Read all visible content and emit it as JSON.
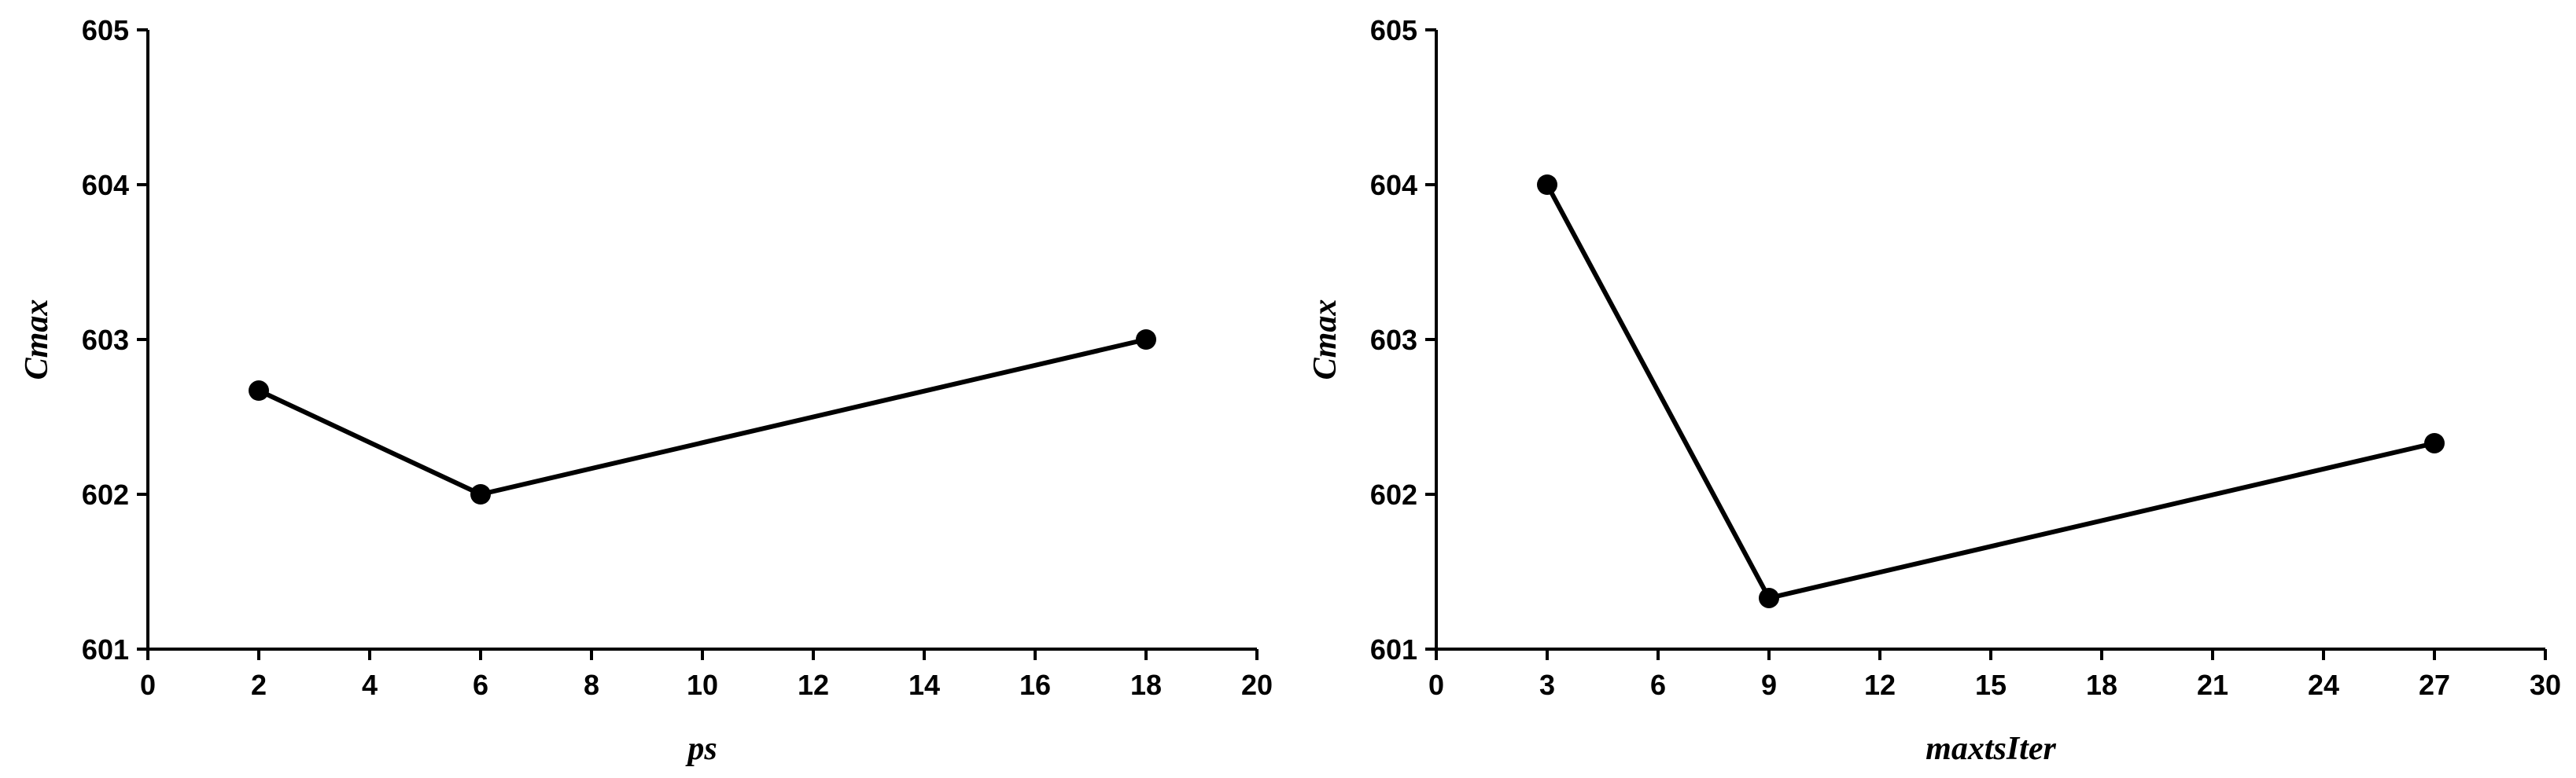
{
  "chart_data": [
    {
      "type": "line",
      "title": "",
      "xlabel": "ps",
      "ylabel": "Cmax",
      "xlim": [
        0,
        20
      ],
      "ylim": [
        601,
        605
      ],
      "xticks": [
        0,
        2,
        4,
        6,
        8,
        10,
        12,
        14,
        16,
        18,
        20
      ],
      "yticks": [
        601,
        602,
        603,
        604,
        605
      ],
      "grid": false,
      "legend": "none",
      "series": [
        {
          "x": [
            2,
            6,
            18
          ],
          "values": [
            602.67,
            602.0,
            603.0
          ]
        }
      ],
      "color": "#000000"
    },
    {
      "type": "line",
      "title": "",
      "xlabel": "maxtsIter",
      "ylabel": "Cmax",
      "xlim": [
        0,
        30
      ],
      "ylim": [
        601,
        605
      ],
      "xticks": [
        0,
        3,
        6,
        9,
        12,
        15,
        18,
        21,
        24,
        27,
        30
      ],
      "yticks": [
        601,
        602,
        603,
        604,
        605
      ],
      "grid": false,
      "legend": "none",
      "series": [
        {
          "x": [
            3,
            9,
            27
          ],
          "values": [
            604.0,
            601.33,
            602.33
          ]
        }
      ],
      "color": "#000000"
    }
  ]
}
